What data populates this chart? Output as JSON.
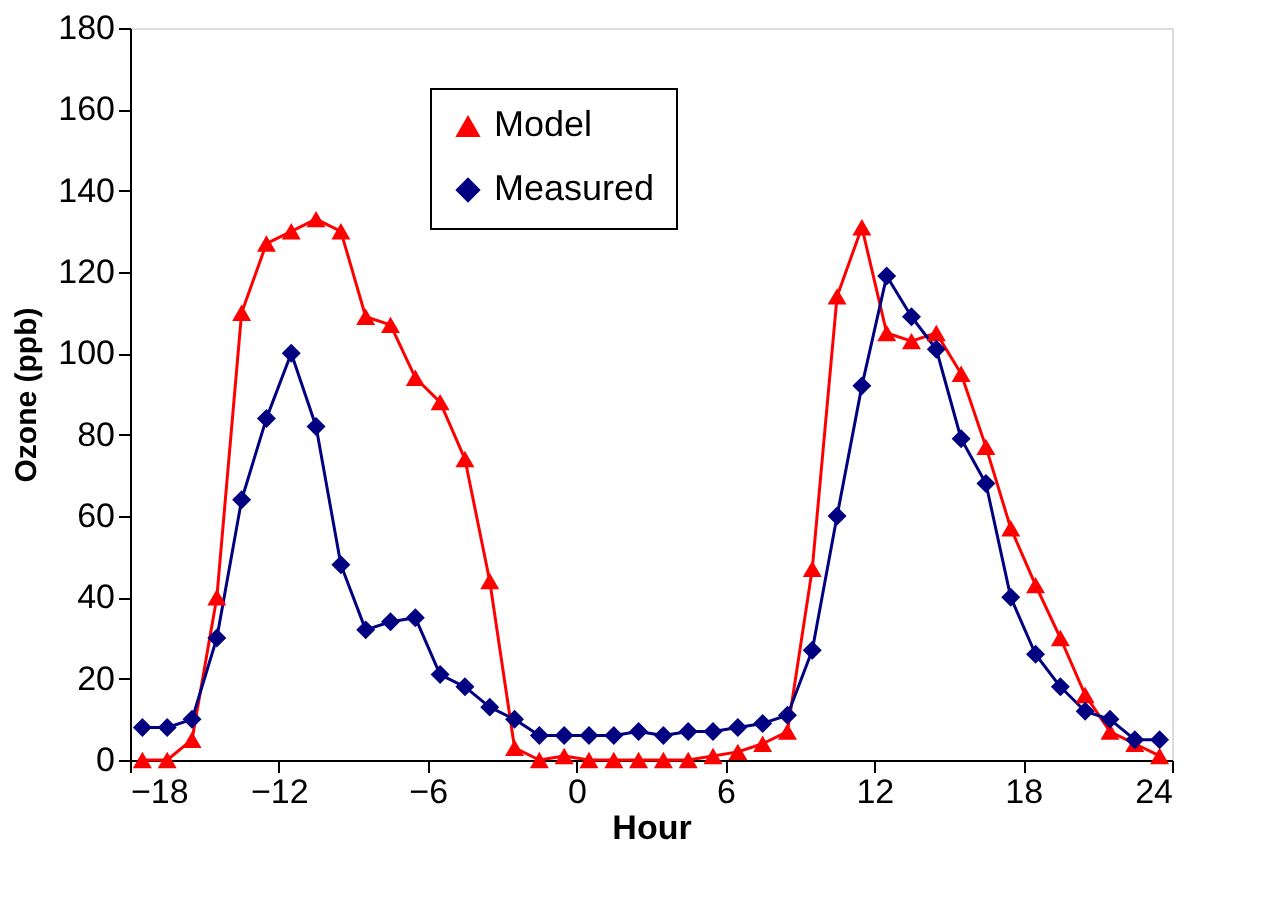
{
  "chart_data": {
    "type": "line",
    "xlabel": "Hour",
    "ylabel": "Ozone (ppb)",
    "x": [
      -17.5,
      -16.5,
      -15.5,
      -14.5,
      -13.5,
      -12.5,
      -11.5,
      -10.5,
      -9.5,
      -8.5,
      -7.5,
      -6.5,
      -5.5,
      -4.5,
      -3.5,
      -2.5,
      -1.5,
      -0.5,
      0.5,
      1.5,
      2.5,
      3.5,
      4.5,
      5.5,
      6.5,
      7.5,
      8.5,
      9.5,
      10.5,
      11.5,
      12.5,
      13.5,
      14.5,
      15.5,
      16.5,
      17.5,
      18.5,
      19.5,
      20.5,
      21.5,
      22.5,
      23.5
    ],
    "series": [
      {
        "name": "Model",
        "color": "#ff0000",
        "marker": "triangle",
        "values": [
          0,
          0,
          5,
          40,
          110,
          127,
          130,
          133,
          130,
          109,
          107,
          94,
          88,
          74,
          44,
          3,
          0,
          1,
          0,
          0,
          0,
          0,
          0,
          1,
          2,
          4,
          7,
          47,
          114,
          131,
          105,
          103,
          105,
          95,
          77,
          57,
          43,
          30,
          16,
          7,
          4,
          1
        ]
      },
      {
        "name": "Measured",
        "color": "#000080",
        "marker": "diamond",
        "values": [
          8,
          8,
          10,
          30,
          64,
          84,
          100,
          82,
          48,
          32,
          34,
          35,
          21,
          18,
          13,
          10,
          6,
          6,
          6,
          6,
          7,
          6,
          7,
          7,
          8,
          9,
          11,
          27,
          60,
          92,
          119,
          109,
          101,
          79,
          68,
          40,
          26,
          18,
          12,
          10,
          5,
          5
        ]
      }
    ],
    "xlim": [
      -18,
      24
    ],
    "xticks": [
      -18,
      -12,
      -6,
      0,
      6,
      12,
      18,
      24
    ],
    "ylim": [
      0,
      180
    ],
    "yticks": [
      0,
      20,
      40,
      60,
      80,
      100,
      120,
      140,
      160,
      180
    ],
    "grid": false,
    "legend": "top"
  }
}
